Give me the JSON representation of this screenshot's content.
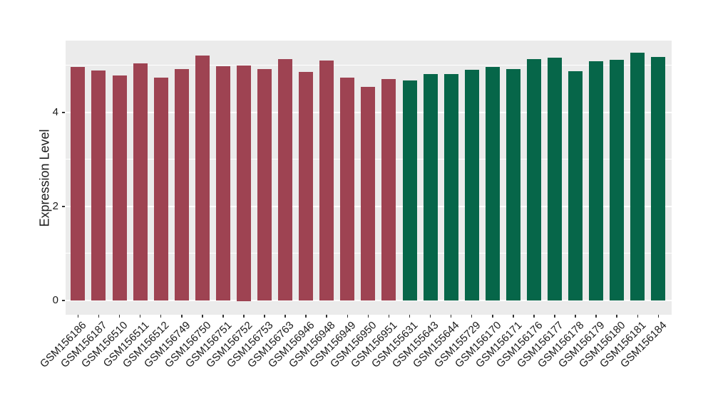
{
  "chart_data": {
    "type": "bar",
    "title": "",
    "xlabel": "",
    "ylabel": "Expression Level",
    "ylim": [
      0,
      5.54
    ],
    "yticks": [
      0,
      2,
      4
    ],
    "minor_gridlines": [
      1,
      3,
      5
    ],
    "grid": "on",
    "legend": "none",
    "panel_background": "#EBEBEB",
    "gridline_color": "#FFFFFF",
    "tick_color": "#333333",
    "text_color": "#1a1a1a",
    "categories": [
      "GSM156186",
      "GSM156187",
      "GSM156510",
      "GSM156511",
      "GSM156512",
      "GSM156749",
      "GSM156750",
      "GSM156751",
      "GSM156752",
      "GSM156753",
      "GSM156763",
      "GSM156946",
      "GSM156948",
      "GSM156949",
      "GSM156950",
      "GSM156951",
      "GSM155631",
      "GSM155643",
      "GSM155644",
      "GSM155729",
      "GSM156170",
      "GSM156171",
      "GSM156176",
      "GSM156177",
      "GSM156178",
      "GSM156179",
      "GSM156180",
      "GSM156181",
      "GSM156184"
    ],
    "values": [
      4.96,
      4.89,
      4.78,
      5.04,
      4.74,
      4.92,
      5.2,
      4.98,
      5.0,
      4.91,
      5.13,
      4.86,
      5.1,
      4.74,
      4.54,
      4.7,
      4.68,
      4.81,
      4.81,
      4.9,
      4.96,
      4.92,
      5.13,
      5.16,
      4.87,
      5.09,
      5.11,
      5.26,
      5.17
    ],
    "group_of_bar": [
      "group1",
      "group1",
      "group1",
      "group1",
      "group1",
      "group1",
      "group1",
      "group1",
      "group1",
      "group1",
      "group1",
      "group1",
      "group1",
      "group1",
      "group1",
      "group1",
      "group2",
      "group2",
      "group2",
      "group2",
      "group2",
      "group2",
      "group2",
      "group2",
      "group2",
      "group2",
      "group2",
      "group2",
      "group2"
    ],
    "group_colors": {
      "group1": "#9E4352",
      "group2": "#066649"
    }
  }
}
